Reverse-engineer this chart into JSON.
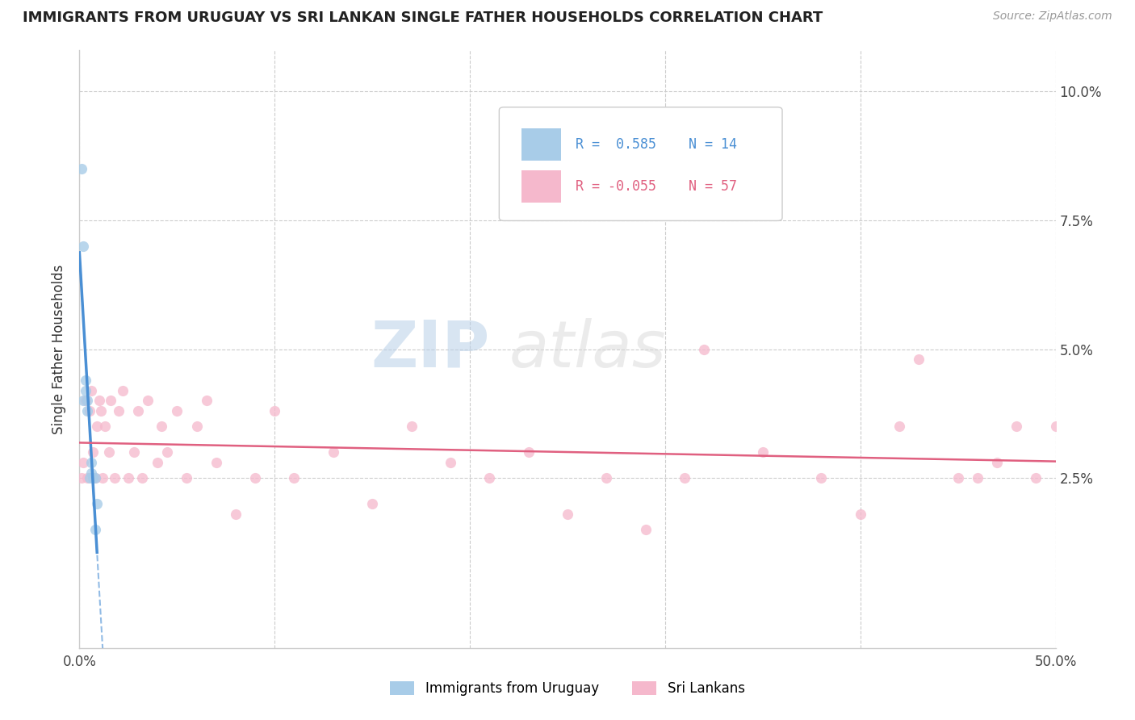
{
  "title": "IMMIGRANTS FROM URUGUAY VS SRI LANKAN SINGLE FATHER HOUSEHOLDS CORRELATION CHART",
  "source_text": "Source: ZipAtlas.com",
  "ylabel": "Single Father Households",
  "xlim": [
    0.0,
    0.5
  ],
  "ylim": [
    -0.008,
    0.108
  ],
  "xticks": [
    0.0,
    0.1,
    0.2,
    0.3,
    0.4,
    0.5
  ],
  "xticklabels": [
    "0.0%",
    "",
    "",
    "",
    "",
    "50.0%"
  ],
  "yticks": [
    0.025,
    0.05,
    0.075,
    0.1
  ],
  "yticklabels_right": [
    "2.5%",
    "5.0%",
    "7.5%",
    "10.0%"
  ],
  "color_uruguay": "#a8cce8",
  "color_srilanka": "#f5b8cc",
  "trendline_color_uruguay": "#4a8fd4",
  "trendline_color_srilanka": "#e06080",
  "uruguay_x": [
    0.001,
    0.002,
    0.002,
    0.003,
    0.003,
    0.004,
    0.004,
    0.005,
    0.006,
    0.006,
    0.007,
    0.008,
    0.008,
    0.009
  ],
  "uruguay_y": [
    0.085,
    0.07,
    0.04,
    0.042,
    0.044,
    0.038,
    0.04,
    0.025,
    0.026,
    0.028,
    0.025,
    0.025,
    0.015,
    0.02
  ],
  "srilanka_x": [
    0.001,
    0.002,
    0.003,
    0.004,
    0.005,
    0.006,
    0.007,
    0.008,
    0.009,
    0.01,
    0.011,
    0.012,
    0.013,
    0.015,
    0.016,
    0.018,
    0.02,
    0.022,
    0.025,
    0.028,
    0.03,
    0.032,
    0.035,
    0.04,
    0.042,
    0.045,
    0.05,
    0.055,
    0.06,
    0.065,
    0.07,
    0.08,
    0.09,
    0.1,
    0.11,
    0.13,
    0.15,
    0.17,
    0.19,
    0.21,
    0.23,
    0.25,
    0.27,
    0.29,
    0.31,
    0.35,
    0.38,
    0.4,
    0.43,
    0.45,
    0.47,
    0.49,
    0.5,
    0.32,
    0.42,
    0.46,
    0.48
  ],
  "srilanka_y": [
    0.025,
    0.028,
    0.04,
    0.025,
    0.038,
    0.042,
    0.03,
    0.025,
    0.035,
    0.04,
    0.038,
    0.025,
    0.035,
    0.03,
    0.04,
    0.025,
    0.038,
    0.042,
    0.025,
    0.03,
    0.038,
    0.025,
    0.04,
    0.028,
    0.035,
    0.03,
    0.038,
    0.025,
    0.035,
    0.04,
    0.028,
    0.018,
    0.025,
    0.038,
    0.025,
    0.03,
    0.02,
    0.035,
    0.028,
    0.025,
    0.03,
    0.018,
    0.025,
    0.015,
    0.025,
    0.03,
    0.025,
    0.018,
    0.048,
    0.025,
    0.028,
    0.025,
    0.035,
    0.05,
    0.035,
    0.025,
    0.035
  ]
}
